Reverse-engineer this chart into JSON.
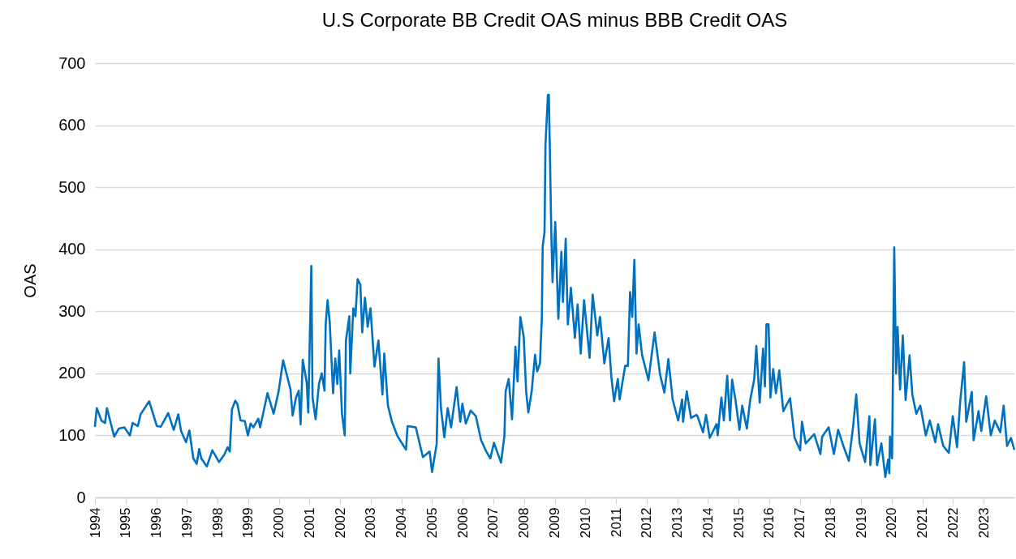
{
  "chart_data": {
    "type": "line",
    "title": "U.S Corporate BB Credit OAS minus BBB Credit OAS",
    "ylabel": "OAS",
    "xlim": [
      1994,
      2024
    ],
    "xticks": [
      1994,
      1995,
      1996,
      1997,
      1998,
      1999,
      2000,
      2001,
      2002,
      2003,
      2004,
      2005,
      2006,
      2007,
      2008,
      2009,
      2010,
      2011,
      2012,
      2013,
      2014,
      2015,
      2016,
      2017,
      2018,
      2019,
      2020,
      2021,
      2022,
      2023
    ],
    "ylim": [
      0,
      700
    ],
    "yticks": [
      0,
      100,
      200,
      300,
      400,
      500,
      600,
      700
    ],
    "grid": "y",
    "line_style": "solid",
    "series": [
      {
        "color": "#0070c0",
        "x": [
          1994.0,
          1994.06,
          1994.21,
          1994.33,
          1994.39,
          1994.63,
          1994.78,
          1994.96,
          1995.14,
          1995.23,
          1995.4,
          1995.49,
          1995.77,
          1996.02,
          1996.15,
          1996.39,
          1996.57,
          1996.72,
          1996.81,
          1996.97,
          1997.08,
          1997.21,
          1997.32,
          1997.4,
          1997.47,
          1997.65,
          1997.83,
          1998.05,
          1998.22,
          1998.33,
          1998.4,
          1998.47,
          1998.58,
          1998.65,
          1998.75,
          1998.89,
          1998.99,
          1999.08,
          1999.17,
          1999.33,
          1999.39,
          1999.63,
          1999.83,
          1999.99,
          2000.14,
          2000.38,
          2000.45,
          2000.56,
          2000.65,
          2000.71,
          2000.78,
          2000.91,
          2000.96,
          2001.06,
          2001.1,
          2001.2,
          2001.31,
          2001.4,
          2001.49,
          2001.53,
          2001.59,
          2001.66,
          2001.77,
          2001.84,
          2001.91,
          2001.97,
          2002.06,
          2002.15,
          2002.19,
          2002.3,
          2002.33,
          2002.43,
          2002.5,
          2002.57,
          2002.66,
          2002.72,
          2002.81,
          2002.9,
          2002.99,
          2003.12,
          2003.25,
          2003.38,
          2003.44,
          2003.56,
          2003.69,
          2003.87,
          2004.15,
          2004.2,
          2004.47,
          2004.7,
          2004.92,
          2005.0,
          2005.15,
          2005.21,
          2005.29,
          2005.4,
          2005.51,
          2005.62,
          2005.8,
          2005.92,
          2005.99,
          2006.1,
          2006.26,
          2006.43,
          2006.6,
          2006.77,
          2006.9,
          2007.02,
          2007.25,
          2007.36,
          2007.4,
          2007.5,
          2007.61,
          2007.72,
          2007.79,
          2007.88,
          2007.99,
          2008.07,
          2008.14,
          2008.25,
          2008.36,
          2008.43,
          2008.52,
          2008.58,
          2008.61,
          2008.67,
          2008.7,
          2008.78,
          2008.81,
          2008.85,
          2008.89,
          2008.93,
          2009.02,
          2009.12,
          2009.22,
          2009.27,
          2009.36,
          2009.43,
          2009.53,
          2009.66,
          2009.75,
          2009.85,
          2009.96,
          2010.14,
          2010.24,
          2010.39,
          2010.48,
          2010.62,
          2010.76,
          2010.85,
          2010.94,
          2011.06,
          2011.12,
          2011.3,
          2011.39,
          2011.46,
          2011.53,
          2011.6,
          2011.67,
          2011.74,
          2011.85,
          2011.97,
          2012.06,
          2012.26,
          2012.44,
          2012.58,
          2012.71,
          2012.85,
          2013.03,
          2013.16,
          2013.19,
          2013.31,
          2013.45,
          2013.63,
          2013.66,
          2013.84,
          2013.94,
          2014.06,
          2014.28,
          2014.32,
          2014.44,
          2014.52,
          2014.63,
          2014.72,
          2014.79,
          2014.9,
          2015.03,
          2015.12,
          2015.27,
          2015.38,
          2015.51,
          2015.58,
          2015.69,
          2015.8,
          2015.86,
          2015.91,
          2015.98,
          2016.04,
          2016.13,
          2016.22,
          2016.33,
          2016.46,
          2016.68,
          2016.83,
          2017.01,
          2017.07,
          2017.19,
          2017.47,
          2017.67,
          2017.73,
          2017.94,
          2018.11,
          2018.25,
          2018.42,
          2018.6,
          2018.73,
          2018.84,
          2018.95,
          2019.13,
          2019.27,
          2019.3,
          2019.45,
          2019.52,
          2019.66,
          2019.79,
          2019.88,
          2019.92,
          2019.94,
          2020.01,
          2020.08,
          2020.14,
          2020.19,
          2020.27,
          2020.36,
          2020.45,
          2020.58,
          2020.67,
          2020.8,
          2020.93,
          2021.11,
          2021.24,
          2021.42,
          2021.51,
          2021.68,
          2021.86,
          2021.99,
          2022.13,
          2022.23,
          2022.36,
          2022.43,
          2022.61,
          2022.67,
          2022.83,
          2022.92,
          2023.08,
          2023.23,
          2023.36,
          2023.54,
          2023.65,
          2023.76,
          2023.89,
          2023.99
        ],
        "values": [
          115,
          144,
          124,
          120,
          144,
          98,
          111,
          113,
          100,
          120,
          115,
          134,
          155,
          115,
          114,
          136,
          109,
          134,
          107,
          89,
          108,
          63,
          54,
          78,
          63,
          50,
          76,
          57,
          69,
          81,
          74,
          142,
          156,
          150,
          124,
          123,
          100,
          119,
          113,
          127,
          113,
          168,
          135,
          170,
          221,
          174,
          132,
          161,
          172,
          118,
          222,
          185,
          137,
          373,
          161,
          126,
          183,
          200,
          172,
          279,
          318,
          283,
          168,
          224,
          183,
          237,
          135,
          100,
          253,
          292,
          200,
          305,
          292,
          352,
          343,
          266,
          322,
          275,
          305,
          211,
          253,
          166,
          232,
          148,
          122,
          99,
          77,
          115,
          113,
          65,
          74,
          41,
          86,
          224,
          144,
          97,
          144,
          113,
          178,
          122,
          151,
          119,
          140,
          131,
          92,
          74,
          63,
          88,
          56,
          99,
          171,
          191,
          126,
          243,
          187,
          291,
          259,
          171,
          137,
          171,
          230,
          203,
          216,
          288,
          405,
          428,
          568,
          649,
          649,
          541,
          428,
          347,
          444,
          288,
          396,
          315,
          417,
          279,
          338,
          257,
          311,
          232,
          318,
          225,
          327,
          261,
          291,
          216,
          257,
          194,
          155,
          191,
          158,
          212,
          212,
          331,
          291,
          383,
          232,
          279,
          230,
          207,
          189,
          266,
          198,
          169,
          223,
          158,
          124,
          158,
          122,
          171,
          128,
          133,
          131,
          105,
          133,
          96,
          118,
          100,
          161,
          124,
          196,
          124,
          190,
          157,
          109,
          148,
          111,
          157,
          190,
          244,
          153,
          240,
          179,
          279,
          279,
          161,
          207,
          168,
          205,
          139,
          160,
          96,
          76,
          122,
          87,
          102,
          70,
          98,
          113,
          70,
          109,
          83,
          59,
          111,
          166,
          87,
          57,
          131,
          52,
          126,
          52,
          87,
          33,
          61,
          39,
          98,
          63,
          403,
          200,
          275,
          174,
          261,
          157,
          229,
          166,
          135,
          148,
          100,
          124,
          89,
          118,
          83,
          72,
          131,
          81,
          153,
          218,
          122,
          170,
          92,
          139,
          107,
          163,
          100,
          124,
          105,
          148,
          83,
          96,
          78
        ]
      }
    ]
  }
}
